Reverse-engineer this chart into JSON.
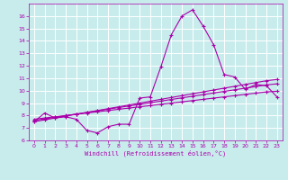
{
  "xlabel": "Windchill (Refroidissement éolien,°C)",
  "bg_color": "#c8ecec",
  "grid_color": "#ffffff",
  "line_color": "#aa00aa",
  "xlim": [
    -0.5,
    23.5
  ],
  "ylim": [
    6,
    17
  ],
  "xticks": [
    0,
    1,
    2,
    3,
    4,
    5,
    6,
    7,
    8,
    9,
    10,
    11,
    12,
    13,
    14,
    15,
    16,
    17,
    18,
    19,
    20,
    21,
    22,
    23
  ],
  "yticks": [
    6,
    7,
    8,
    9,
    10,
    11,
    12,
    13,
    14,
    15,
    16
  ],
  "line1_x": [
    0,
    1,
    2,
    3,
    4,
    5,
    6,
    7,
    8,
    9,
    10,
    11,
    12,
    13,
    14,
    15,
    16,
    17,
    18,
    19,
    20,
    21,
    22,
    23
  ],
  "line1_y": [
    7.5,
    8.2,
    7.8,
    7.9,
    7.7,
    6.8,
    6.6,
    7.1,
    7.3,
    7.3,
    9.4,
    9.5,
    11.9,
    14.5,
    16.0,
    16.5,
    15.2,
    13.7,
    11.3,
    11.1,
    10.1,
    10.5,
    10.4,
    9.5
  ],
  "line2_x": [
    0,
    1,
    2,
    3,
    4,
    5,
    6,
    7,
    8,
    9,
    10,
    11,
    12,
    13,
    14,
    15,
    16,
    17,
    18,
    19,
    20,
    21,
    22,
    23
  ],
  "line2_y": [
    7.5,
    7.65,
    7.8,
    7.95,
    8.1,
    8.25,
    8.4,
    8.55,
    8.7,
    8.85,
    9.0,
    9.15,
    9.3,
    9.45,
    9.6,
    9.75,
    9.9,
    10.05,
    10.2,
    10.35,
    10.5,
    10.65,
    10.8,
    10.9
  ],
  "line3_x": [
    0,
    1,
    2,
    3,
    4,
    5,
    6,
    7,
    8,
    9,
    10,
    11,
    12,
    13,
    14,
    15,
    16,
    17,
    18,
    19,
    20,
    21,
    22,
    23
  ],
  "line3_y": [
    7.6,
    7.73,
    7.86,
    7.99,
    8.12,
    8.25,
    8.38,
    8.51,
    8.64,
    8.77,
    8.9,
    9.03,
    9.16,
    9.29,
    9.42,
    9.55,
    9.68,
    9.81,
    9.94,
    10.07,
    10.2,
    10.33,
    10.46,
    10.55
  ],
  "line4_x": [
    0,
    1,
    2,
    3,
    4,
    5,
    6,
    7,
    8,
    9,
    10,
    11,
    12,
    13,
    14,
    15,
    16,
    17,
    18,
    19,
    20,
    21,
    22,
    23
  ],
  "line4_y": [
    7.7,
    7.8,
    7.9,
    8.0,
    8.1,
    8.2,
    8.3,
    8.4,
    8.5,
    8.6,
    8.7,
    8.8,
    8.9,
    9.0,
    9.1,
    9.2,
    9.3,
    9.4,
    9.5,
    9.6,
    9.7,
    9.8,
    9.9,
    9.95
  ]
}
